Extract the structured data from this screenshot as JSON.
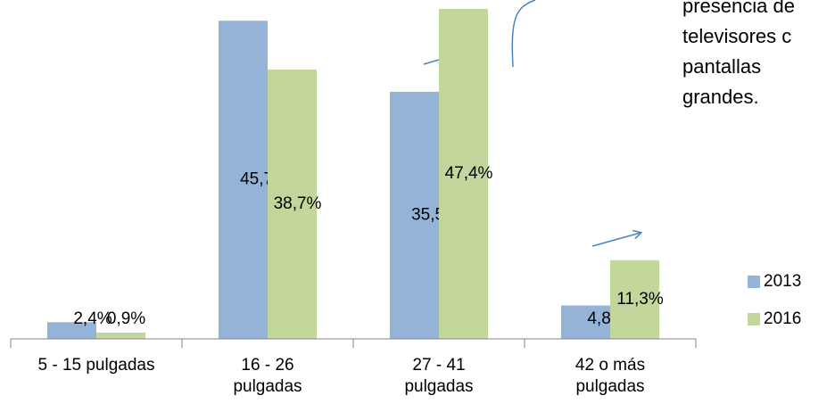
{
  "chart_data": {
    "type": "bar",
    "categories": [
      "5 -  15 pulgadas",
      "16 - 26 pulgadas",
      "27 - 41 pulgadas",
      "42 o más pulgadas"
    ],
    "series": [
      {
        "name": "2013",
        "color": "#95b3d7",
        "values": [
          2.4,
          45.7,
          35.5,
          4.8
        ],
        "value_labels": [
          "2,4%",
          "45,7%",
          "35,5%",
          "4,8%"
        ]
      },
      {
        "name": "2016",
        "color": "#c3d69b",
        "values": [
          0.9,
          38.7,
          47.4,
          11.3
        ],
        "value_labels": [
          "0,9%",
          "38,7%",
          "47,4%",
          "11,3%"
        ]
      }
    ],
    "annotation": [
      "presencia de",
      "televisores c",
      "pantallas",
      "grandes."
    ],
    "legend": "right"
  }
}
